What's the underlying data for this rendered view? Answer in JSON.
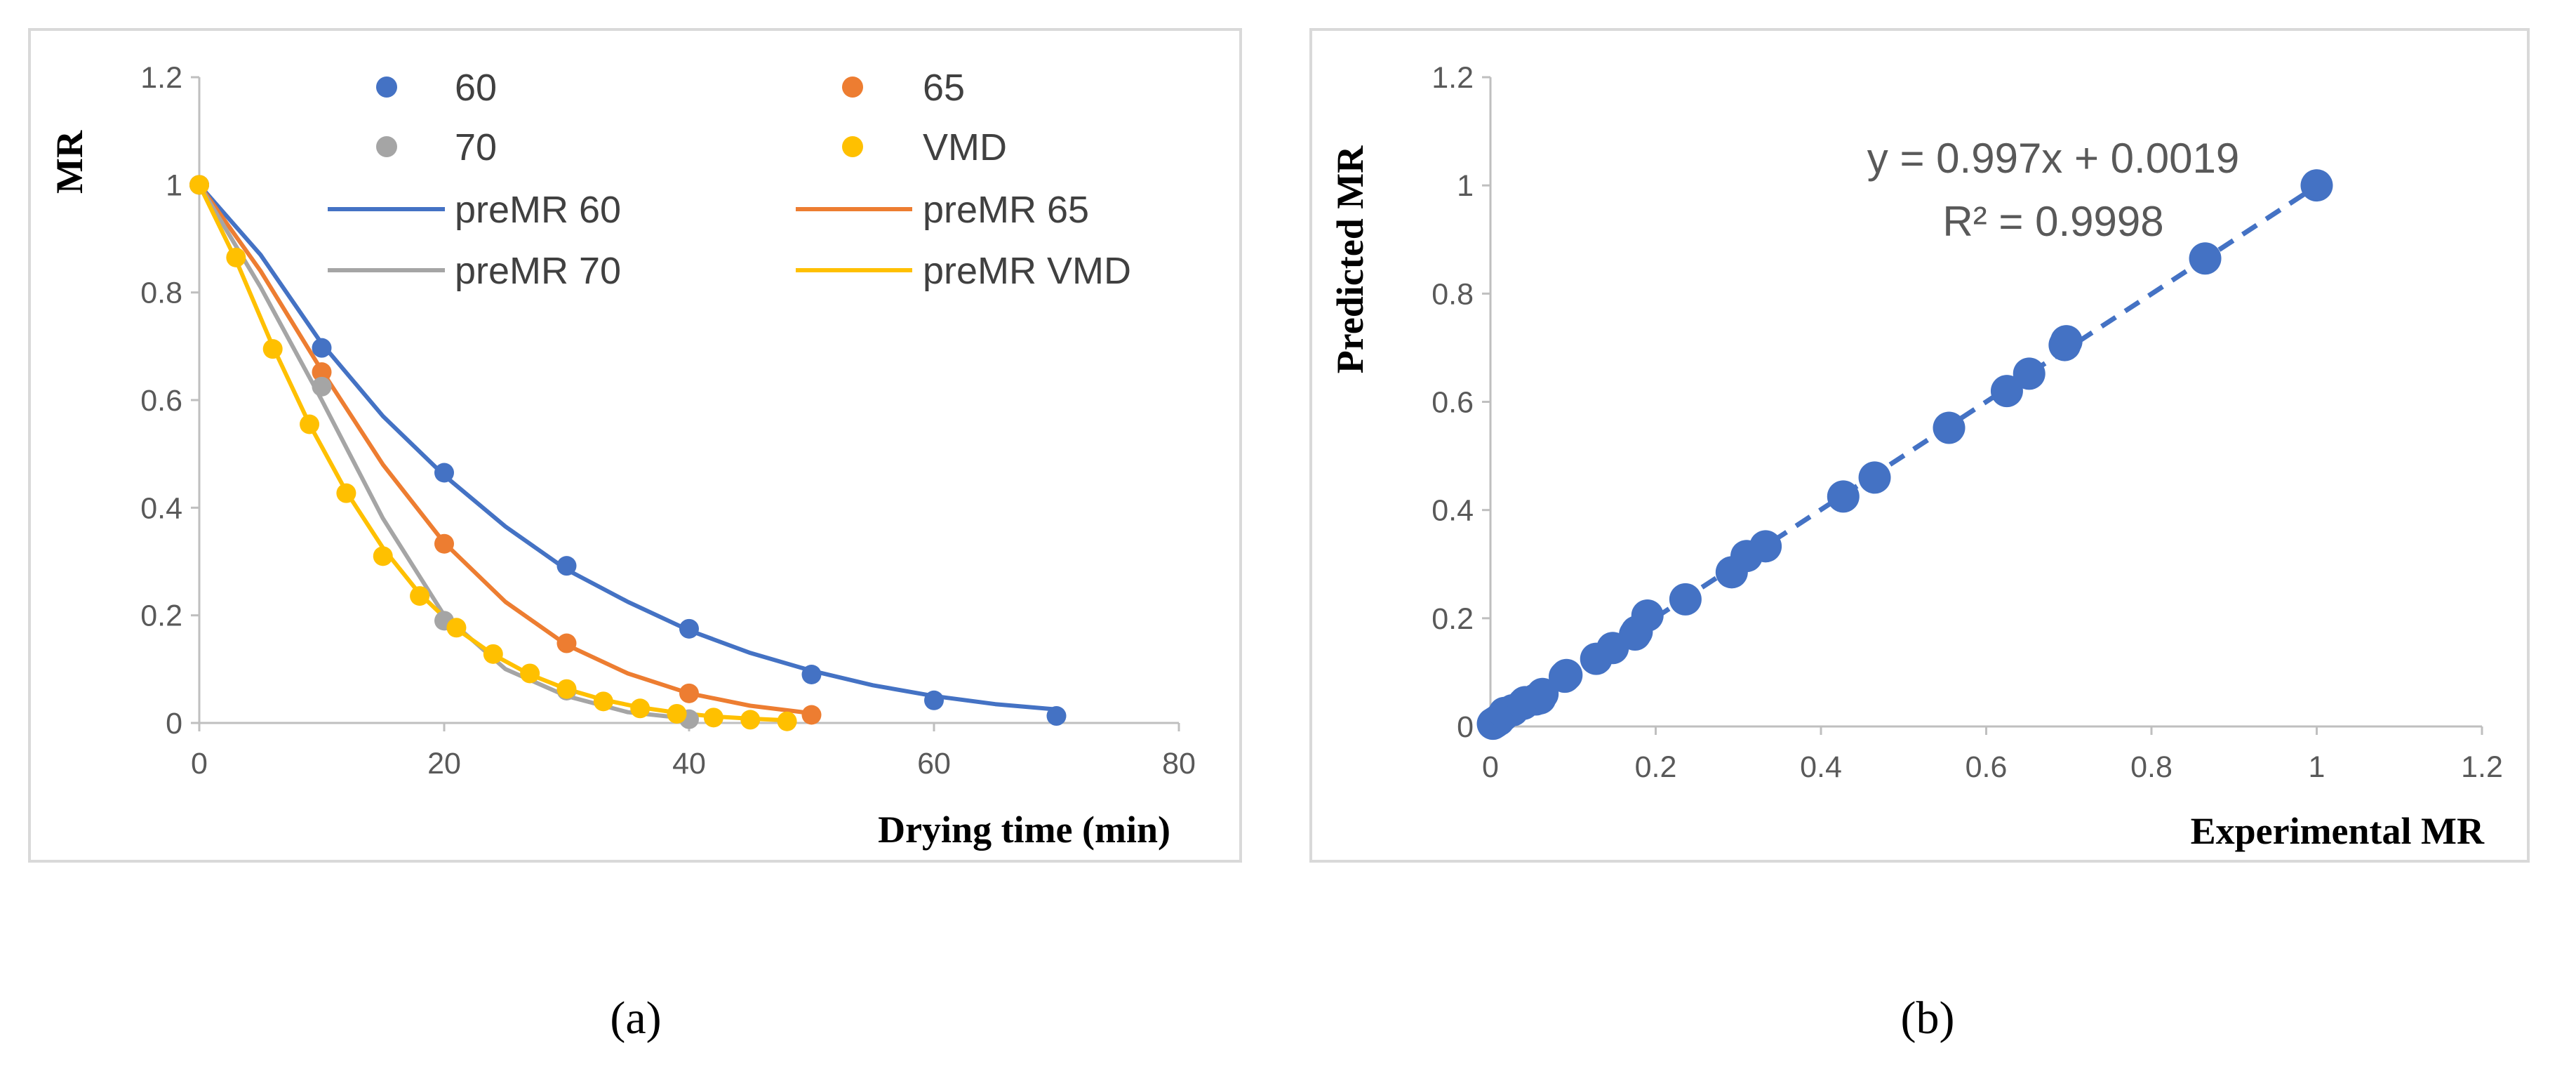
{
  "chart_data": [
    {
      "type": "scatter",
      "panel_label": "(a)",
      "xlabel": "Drying time (min)",
      "ylabel": "MR",
      "xlim": [
        0,
        80
      ],
      "ylim": [
        0,
        1.2
      ],
      "xticks": [
        "0",
        "20",
        "40",
        "60",
        "80"
      ],
      "yticks": [
        "0",
        "0.2",
        "0.4",
        "0.6",
        "0.8",
        "1",
        "1.2"
      ],
      "legend_position": "top",
      "legend": [
        "60",
        "65",
        "70",
        "VMD",
        "preMR 60",
        "preMR 65",
        "preMR 70",
        "preMR VMD"
      ],
      "series": [
        {
          "name": "60",
          "kind": "points",
          "color": "#4472C4",
          "x": [
            0,
            10,
            20,
            30,
            40,
            50,
            60,
            70
          ],
          "y": [
            1,
            0.697,
            0.465,
            0.292,
            0.175,
            0.09,
            0.042,
            0.013
          ]
        },
        {
          "name": "65",
          "kind": "points",
          "color": "#ED7D31",
          "x": [
            0,
            10,
            20,
            30,
            40,
            50
          ],
          "y": [
            1,
            0.652,
            0.333,
            0.148,
            0.055,
            0.015
          ]
        },
        {
          "name": "70",
          "kind": "points",
          "color": "#A5A5A5",
          "x": [
            0,
            10,
            20,
            30,
            40
          ],
          "y": [
            1,
            0.625,
            0.19,
            0.06,
            0.007
          ]
        },
        {
          "name": "VMD",
          "kind": "points",
          "color": "#FFC000",
          "x": [
            0,
            3,
            6,
            9,
            12,
            15,
            18,
            21,
            24,
            27,
            30,
            33,
            36,
            39,
            42,
            45,
            48
          ],
          "y": [
            1,
            0.865,
            0.695,
            0.555,
            0.427,
            0.31,
            0.236,
            0.177,
            0.128,
            0.092,
            0.063,
            0.04,
            0.027,
            0.017,
            0.01,
            0.006,
            0.003
          ]
        },
        {
          "name": "preMR 60",
          "kind": "line",
          "color": "#4472C4",
          "x": [
            0,
            5,
            10,
            15,
            20,
            25,
            30,
            35,
            40,
            45,
            50,
            55,
            60,
            65,
            70
          ],
          "y": [
            1,
            0.87,
            0.705,
            0.57,
            0.46,
            0.365,
            0.285,
            0.225,
            0.172,
            0.13,
            0.097,
            0.07,
            0.05,
            0.035,
            0.025
          ]
        },
        {
          "name": "preMR 65",
          "kind": "line",
          "color": "#ED7D31",
          "x": [
            0,
            5,
            10,
            15,
            20,
            25,
            30,
            35,
            40,
            45,
            50
          ],
          "y": [
            1,
            0.84,
            0.655,
            0.48,
            0.335,
            0.225,
            0.145,
            0.092,
            0.055,
            0.032,
            0.018
          ]
        },
        {
          "name": "preMR 70",
          "kind": "line",
          "color": "#A5A5A5",
          "x": [
            0,
            5,
            10,
            15,
            20,
            25,
            30,
            35,
            40
          ],
          "y": [
            1,
            0.81,
            0.6,
            0.38,
            0.2,
            0.1,
            0.05,
            0.02,
            0.008
          ]
        },
        {
          "name": "preMR VMD",
          "kind": "line",
          "color": "#FFC000",
          "x": [
            0,
            3,
            6,
            9,
            12,
            15,
            18,
            21,
            24,
            27,
            30,
            33,
            36,
            39,
            42,
            45,
            48
          ],
          "y": [
            1,
            0.86,
            0.7,
            0.555,
            0.43,
            0.325,
            0.24,
            0.175,
            0.127,
            0.09,
            0.063,
            0.043,
            0.029,
            0.019,
            0.012,
            0.008,
            0.005
          ]
        }
      ]
    },
    {
      "type": "scatter",
      "panel_label": "(b)",
      "xlabel": "Experimental MR",
      "ylabel": "Predicted MR",
      "xlim": [
        0,
        1.2
      ],
      "ylim": [
        0,
        1.2
      ],
      "xticks": [
        "0",
        "0.2",
        "0.4",
        "0.6",
        "0.8",
        "1",
        "1.2"
      ],
      "yticks": [
        "0",
        "0.2",
        "0.4",
        "0.6",
        "0.8",
        "1",
        "1.2"
      ],
      "equation": "y = 0.997x + 0.0019",
      "r_squared": "R² = 0.9998",
      "point_color": "#4472C4",
      "trendline": {
        "slope": 0.997,
        "intercept": 0.0019,
        "x": [
          0,
          1
        ],
        "style": "dashed"
      },
      "points": {
        "x": [
          0.003,
          0.006,
          0.01,
          0.015,
          0.017,
          0.027,
          0.04,
          0.042,
          0.055,
          0.06,
          0.063,
          0.09,
          0.092,
          0.128,
          0.148,
          0.175,
          0.177,
          0.19,
          0.236,
          0.292,
          0.31,
          0.333,
          0.427,
          0.465,
          0.555,
          0.625,
          0.652,
          0.695,
          0.697,
          0.865,
          1.0
        ],
        "y": [
          0.005,
          0.008,
          0.012,
          0.02,
          0.025,
          0.03,
          0.042,
          0.045,
          0.05,
          0.052,
          0.06,
          0.092,
          0.095,
          0.125,
          0.145,
          0.17,
          0.175,
          0.205,
          0.235,
          0.285,
          0.315,
          0.333,
          0.425,
          0.46,
          0.552,
          0.62,
          0.652,
          0.705,
          0.712,
          0.865,
          1.0
        ]
      }
    }
  ]
}
